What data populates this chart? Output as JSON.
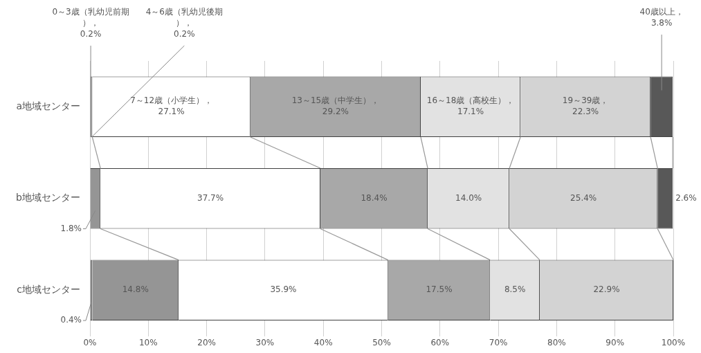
{
  "chart_data": {
    "type": "bar",
    "orientation": "horizontal",
    "stacked": true,
    "categories": [
      "a地域センター",
      "b地域センター",
      "c地域センター"
    ],
    "xlim": [
      0,
      100
    ],
    "xticks": [
      {
        "value": 0,
        "label": "0%"
      },
      {
        "value": 10,
        "label": "10%"
      },
      {
        "value": 20,
        "label": "20%"
      },
      {
        "value": 30,
        "label": "30%"
      },
      {
        "value": 40,
        "label": "40%"
      },
      {
        "value": 50,
        "label": "50%"
      },
      {
        "value": 60,
        "label": "60%"
      },
      {
        "value": 70,
        "label": "70%"
      },
      {
        "value": 80,
        "label": "80%"
      },
      {
        "value": 90,
        "label": "90%"
      },
      {
        "value": 100,
        "label": "100%"
      }
    ],
    "grid": "x",
    "legend": false,
    "series": [
      {
        "color": "#7f7f7f",
        "values": [
          0.2,
          null,
          0.4
        ],
        "value_labels": [
          "0～3歳（乳幼児前期），0.2%",
          null,
          "0.4%"
        ]
      },
      {
        "color": "#959595",
        "values": [
          0.2,
          1.8,
          14.8
        ],
        "value_labels": [
          "4～6歳（乳幼児後期），0.2%",
          "1.8%",
          "14.8%"
        ]
      },
      {
        "color": "#ffffff",
        "values": [
          27.1,
          37.7,
          35.9
        ],
        "value_labels": [
          "7～12歳（小学生），27.1%",
          "37.7%",
          "35.9%"
        ]
      },
      {
        "color": "#a8a8a8",
        "values": [
          29.2,
          18.4,
          17.5
        ],
        "value_labels": [
          "13～15歳（中学生），29.2%",
          "18.4%",
          "17.5%"
        ]
      },
      {
        "color": "#e2e2e2",
        "values": [
          17.1,
          14.0,
          8.5
        ],
        "value_labels": [
          "16～18歳（高校生），17.1%",
          "14.0%",
          "8.5%"
        ]
      },
      {
        "color": "#d3d3d3",
        "values": [
          22.3,
          25.4,
          22.9
        ],
        "value_labels": [
          "19～39歳，22.3%",
          "25.4%",
          "22.9%"
        ]
      },
      {
        "color": "#585858",
        "values": [
          3.8,
          2.6,
          null
        ],
        "value_labels": [
          "40歳以上，3.8%",
          "2.6%",
          null
        ]
      }
    ]
  }
}
